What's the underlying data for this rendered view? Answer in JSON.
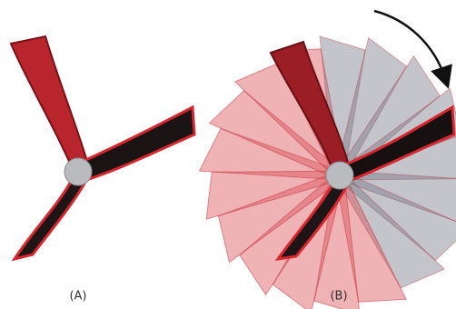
{
  "panels": [
    {
      "label": "(A)"
    },
    {
      "label": "(B)"
    }
  ]
}
